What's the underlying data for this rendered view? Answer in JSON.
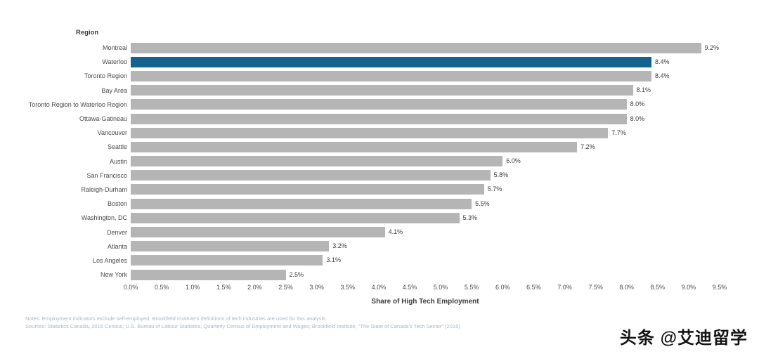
{
  "chart_data": {
    "type": "bar",
    "orientation": "horizontal",
    "title": "",
    "ylabel": "Region",
    "xlabel": "Share of High Tech Employment",
    "categories": [
      "Montreal",
      "Waterloo",
      "Toronto Region",
      "Bay Area",
      "Toronto Region to Waterloo Region",
      "Ottawa-Gatineau",
      "Vancouver",
      "Seattle",
      "Austin",
      "San Francisco",
      "Raleigh-Durham",
      "Boston",
      "Washington, DC",
      "Denver",
      "Atlanta",
      "Los Angeles",
      "New York"
    ],
    "values": [
      9.2,
      8.4,
      8.4,
      8.1,
      8.0,
      8.0,
      7.7,
      7.2,
      6.0,
      5.8,
      5.7,
      5.5,
      5.3,
      4.1,
      3.2,
      3.1,
      2.5
    ],
    "value_labels": [
      "9.2%",
      "8.4%",
      "8.4%",
      "8.1%",
      "8.0%",
      "8.0%",
      "7.7%",
      "7.2%",
      "6.0%",
      "5.8%",
      "5.7%",
      "5.5%",
      "5.3%",
      "4.1%",
      "3.2%",
      "3.1%",
      "2.5%"
    ],
    "highlight_index": 1,
    "bar_color": "#b5b5b6",
    "highlight_color": "#13638e",
    "xlim": [
      0,
      9.5
    ],
    "x_tick_step": 0.5,
    "x_ticks": [
      "0.0%",
      "0.5%",
      "1.0%",
      "1.5%",
      "2.0%",
      "2.5%",
      "3.0%",
      "3.5%",
      "4.0%",
      "4.5%",
      "5.0%",
      "5.5%",
      "6.0%",
      "6.5%",
      "7.0%",
      "7.5%",
      "8.0%",
      "8.5%",
      "9.0%",
      "9.5%"
    ],
    "grid": false,
    "legend": false
  },
  "footer": {
    "notes": "Notes: Employment indicators exclude self-employed. Brookfield Institute's definitions of tech industries are used for this analysis.",
    "sources": "Sources: Statistics Canada, 2016 Census; U.S. Bureau of Labour Statistics; Quarterly Census of Employment and Wages; Brookfield Institute, \"The State of Canada's Tech Sector\" (2016)"
  },
  "watermark": {
    "text": "头条 @艾迪留学"
  }
}
